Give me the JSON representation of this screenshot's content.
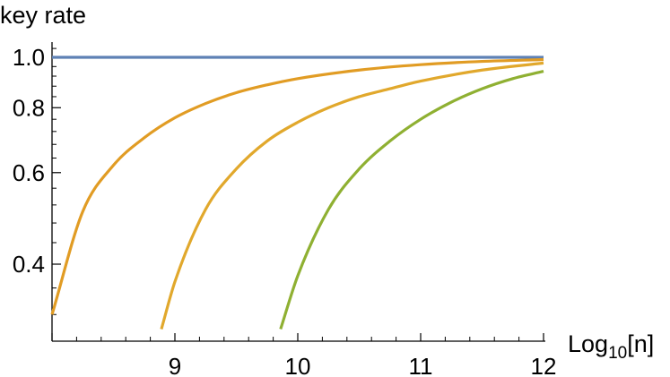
{
  "chart_data": {
    "type": "line",
    "title": "",
    "xlabel": {
      "base": "Log",
      "sub": "10",
      "tail": "[n]"
    },
    "ylabel": "key rate",
    "xlim": [
      8,
      12
    ],
    "ylim": [
      0.3,
      1.05
    ],
    "y_scale": "log",
    "grid": false,
    "x_ticks": [
      {
        "value": 9,
        "label": "9"
      },
      {
        "value": 10,
        "label": "10"
      },
      {
        "value": 11,
        "label": "11"
      },
      {
        "value": 12,
        "label": "12"
      }
    ],
    "y_ticks": [
      {
        "value": 0.4,
        "label": "0.4"
      },
      {
        "value": 0.6,
        "label": "0.6"
      },
      {
        "value": 0.8,
        "label": "0.8"
      },
      {
        "value": 1.0,
        "label": "1.0"
      }
    ],
    "series": [
      {
        "color": "#5E81B5",
        "x": [
          8.0,
          12.0
        ],
        "y": [
          1.0,
          1.0
        ]
      },
      {
        "color": "#E19C24",
        "x": [
          8.0,
          8.25,
          8.5,
          8.75,
          9.0,
          9.25,
          9.5,
          9.75,
          10.0,
          10.5,
          11.0,
          11.5,
          12.0
        ],
        "y": [
          0.32,
          0.505,
          0.62,
          0.7,
          0.765,
          0.815,
          0.855,
          0.885,
          0.91,
          0.945,
          0.968,
          0.982,
          0.99
        ]
      },
      {
        "color": "#E1A82C",
        "x": [
          8.89,
          9.0,
          9.25,
          9.5,
          9.75,
          10.0,
          10.25,
          10.5,
          10.75,
          11.0,
          11.5,
          12.0
        ],
        "y": [
          0.3,
          0.37,
          0.51,
          0.61,
          0.69,
          0.75,
          0.8,
          0.84,
          0.87,
          0.9,
          0.945,
          0.975
        ]
      },
      {
        "color": "#8FB032",
        "x": [
          9.86,
          10.0,
          10.25,
          10.5,
          10.75,
          11.0,
          11.25,
          11.5,
          11.75,
          12.0
        ],
        "y": [
          0.3,
          0.38,
          0.51,
          0.61,
          0.69,
          0.76,
          0.82,
          0.87,
          0.91,
          0.94
        ]
      }
    ]
  }
}
